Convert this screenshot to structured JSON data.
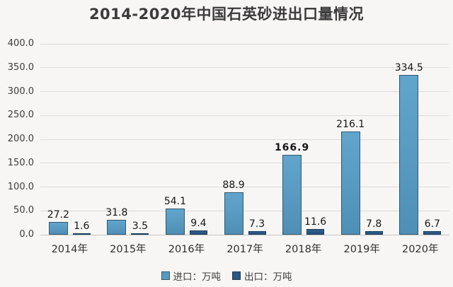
{
  "title": "2014-2020年中国石英砂进出口量情况",
  "chart_data": {
    "type": "bar",
    "title": "2014-2020年中国石英砂进出口量情况",
    "categories": [
      "2014年",
      "2015年",
      "2016年",
      "2017年",
      "2018年",
      "2019年",
      "2020年"
    ],
    "series": [
      {
        "name": "进口：万吨",
        "color": "#5899c0",
        "border_color": "#33586f",
        "values": [
          27.2,
          31.8,
          54.1,
          88.9,
          166.9,
          216.1,
          334.5
        ]
      },
      {
        "name": "出口：万吨",
        "color": "#2a5783",
        "border_color": "#1c3c5c",
        "values": [
          1.6,
          3.5,
          9.4,
          7.3,
          11.6,
          7.8,
          6.7
        ]
      }
    ],
    "ylim": [
      0,
      400
    ],
    "ytick_step": 50,
    "ytick_labels": [
      "0.0",
      "50.0",
      "100.0",
      "150.0",
      "200.0",
      "250.0",
      "300.0",
      "350.0",
      "400.0"
    ],
    "grid": true,
    "legend_position": "bottom",
    "data_labels_visible": true,
    "emphasized_label": {
      "series_index": 0,
      "category_index": 4
    }
  },
  "colors": {
    "background": "#f7f6f4",
    "gridline": "#dbdbd9",
    "title_text": "#3b3b3b",
    "axis_text": "#3c3c3c",
    "data_label_text": "#161616"
  }
}
